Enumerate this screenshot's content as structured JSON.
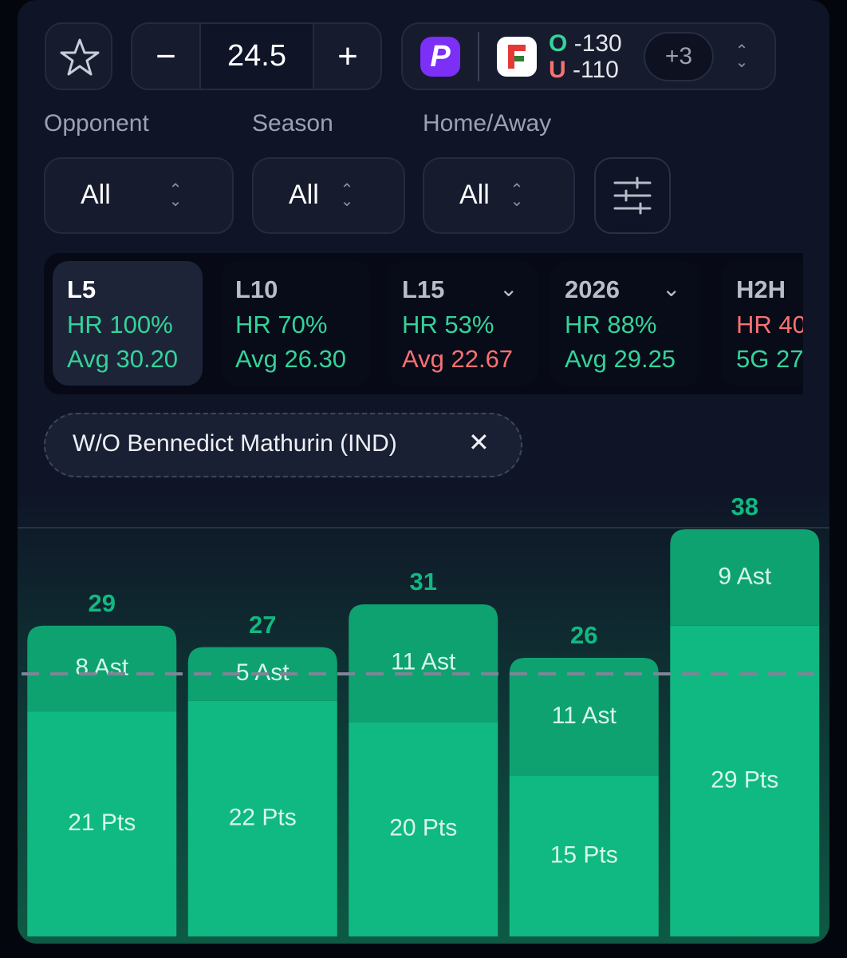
{
  "header": {
    "line": 24.5,
    "over_label": "O",
    "over_price": -130,
    "under_label": "U",
    "under_price": -110,
    "more_books": "+3"
  },
  "filters": [
    {
      "label": "Opponent",
      "value": "All"
    },
    {
      "label": "Season",
      "value": "All"
    },
    {
      "label": "Home/Away",
      "value": "All"
    }
  ],
  "periods": [
    {
      "title": "L5",
      "selected": true,
      "dropdown": false,
      "stats": [
        {
          "text": "HR 100%",
          "color": "#34d399"
        },
        {
          "text": "Avg 30.20",
          "color": "#34d399"
        }
      ]
    },
    {
      "title": "L10",
      "selected": false,
      "dropdown": false,
      "stats": [
        {
          "text": "HR 70%",
          "color": "#34d399"
        },
        {
          "text": "Avg 26.30",
          "color": "#34d399"
        }
      ]
    },
    {
      "title": "L15",
      "selected": false,
      "dropdown": true,
      "stats": [
        {
          "text": "HR 53%",
          "color": "#34d399"
        },
        {
          "text": "Avg 22.67",
          "color": "#f87171"
        }
      ]
    },
    {
      "title": "2026",
      "selected": false,
      "dropdown": true,
      "stats": [
        {
          "text": "HR 88%",
          "color": "#34d399"
        },
        {
          "text": "Avg 29.25",
          "color": "#34d399"
        }
      ]
    },
    {
      "title": "H2H",
      "selected": false,
      "dropdown": false,
      "stats": [
        {
          "text": "HR 40",
          "color": "#f87171"
        },
        {
          "text": "5G 27.",
          "color": "#34d399"
        }
      ]
    }
  ],
  "tag": {
    "text": "W/O Bennedict Mathurin (IND)"
  },
  "chart_data": {
    "type": "stacked-bar",
    "categories": [
      null,
      null,
      null,
      null,
      null
    ],
    "series": [
      {
        "name": "Pts",
        "color": "#10b981",
        "values": [
          21,
          22,
          20,
          15,
          29
        ],
        "value_labels": [
          "21 Pts",
          "22 Pts",
          "20 Pts",
          "15 Pts",
          "29 Pts"
        ]
      },
      {
        "name": "Ast",
        "color": "#0ea271",
        "values": [
          8,
          5,
          11,
          11,
          9
        ],
        "value_labels": [
          "8 Ast",
          "5 Ast",
          "11 Ast",
          "11 Ast",
          "9 Ast"
        ]
      }
    ],
    "totals": [
      29,
      27,
      31,
      26,
      38
    ],
    "ylim": [
      0,
      38
    ]
  }
}
